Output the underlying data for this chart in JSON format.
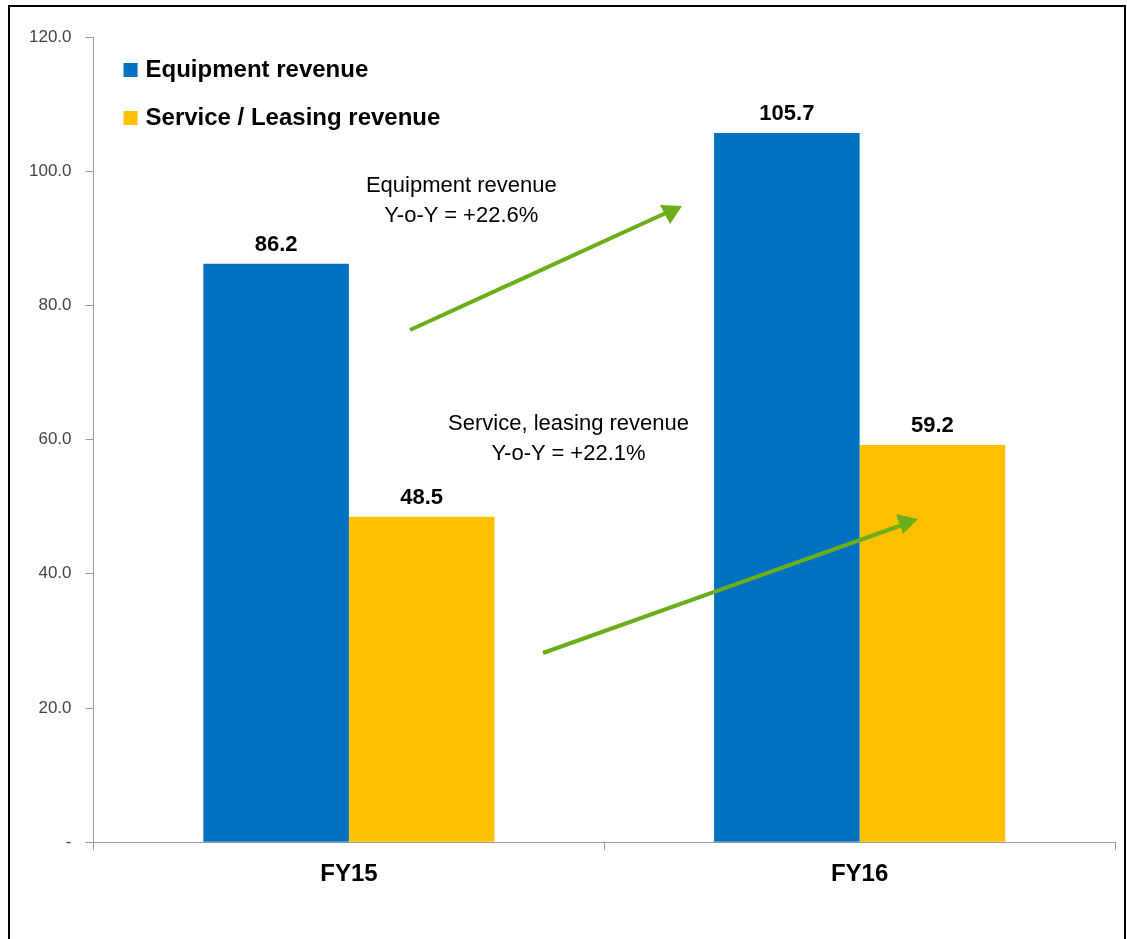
{
  "chart_data": {
    "type": "bar",
    "categories": [
      "FY15",
      "FY16"
    ],
    "series": [
      {
        "name": "Equipment revenue",
        "color": "#0070c0",
        "values": [
          86.2,
          105.7
        ]
      },
      {
        "name": "Service / Leasing revenue",
        "color": "#ffc000",
        "values": [
          48.5,
          59.2
        ]
      }
    ],
    "ylim": [
      0,
      120
    ],
    "yticks": [
      {
        "value": 0,
        "label": "-"
      },
      {
        "value": 20,
        "label": "20.0"
      },
      {
        "value": 40,
        "label": "40.0"
      },
      {
        "value": 60,
        "label": "60.0"
      },
      {
        "value": 80,
        "label": "80.0"
      },
      {
        "value": 100,
        "label": "100.0"
      },
      {
        "value": 120,
        "label": "120.0"
      }
    ],
    "data_labels": true,
    "grid": false,
    "legend": "top left",
    "annotations": [
      "Equipment revenue\nY-o-Y = +22.6%",
      "Service, leasing revenue\nY-o-Y = +22.1%"
    ]
  }
}
